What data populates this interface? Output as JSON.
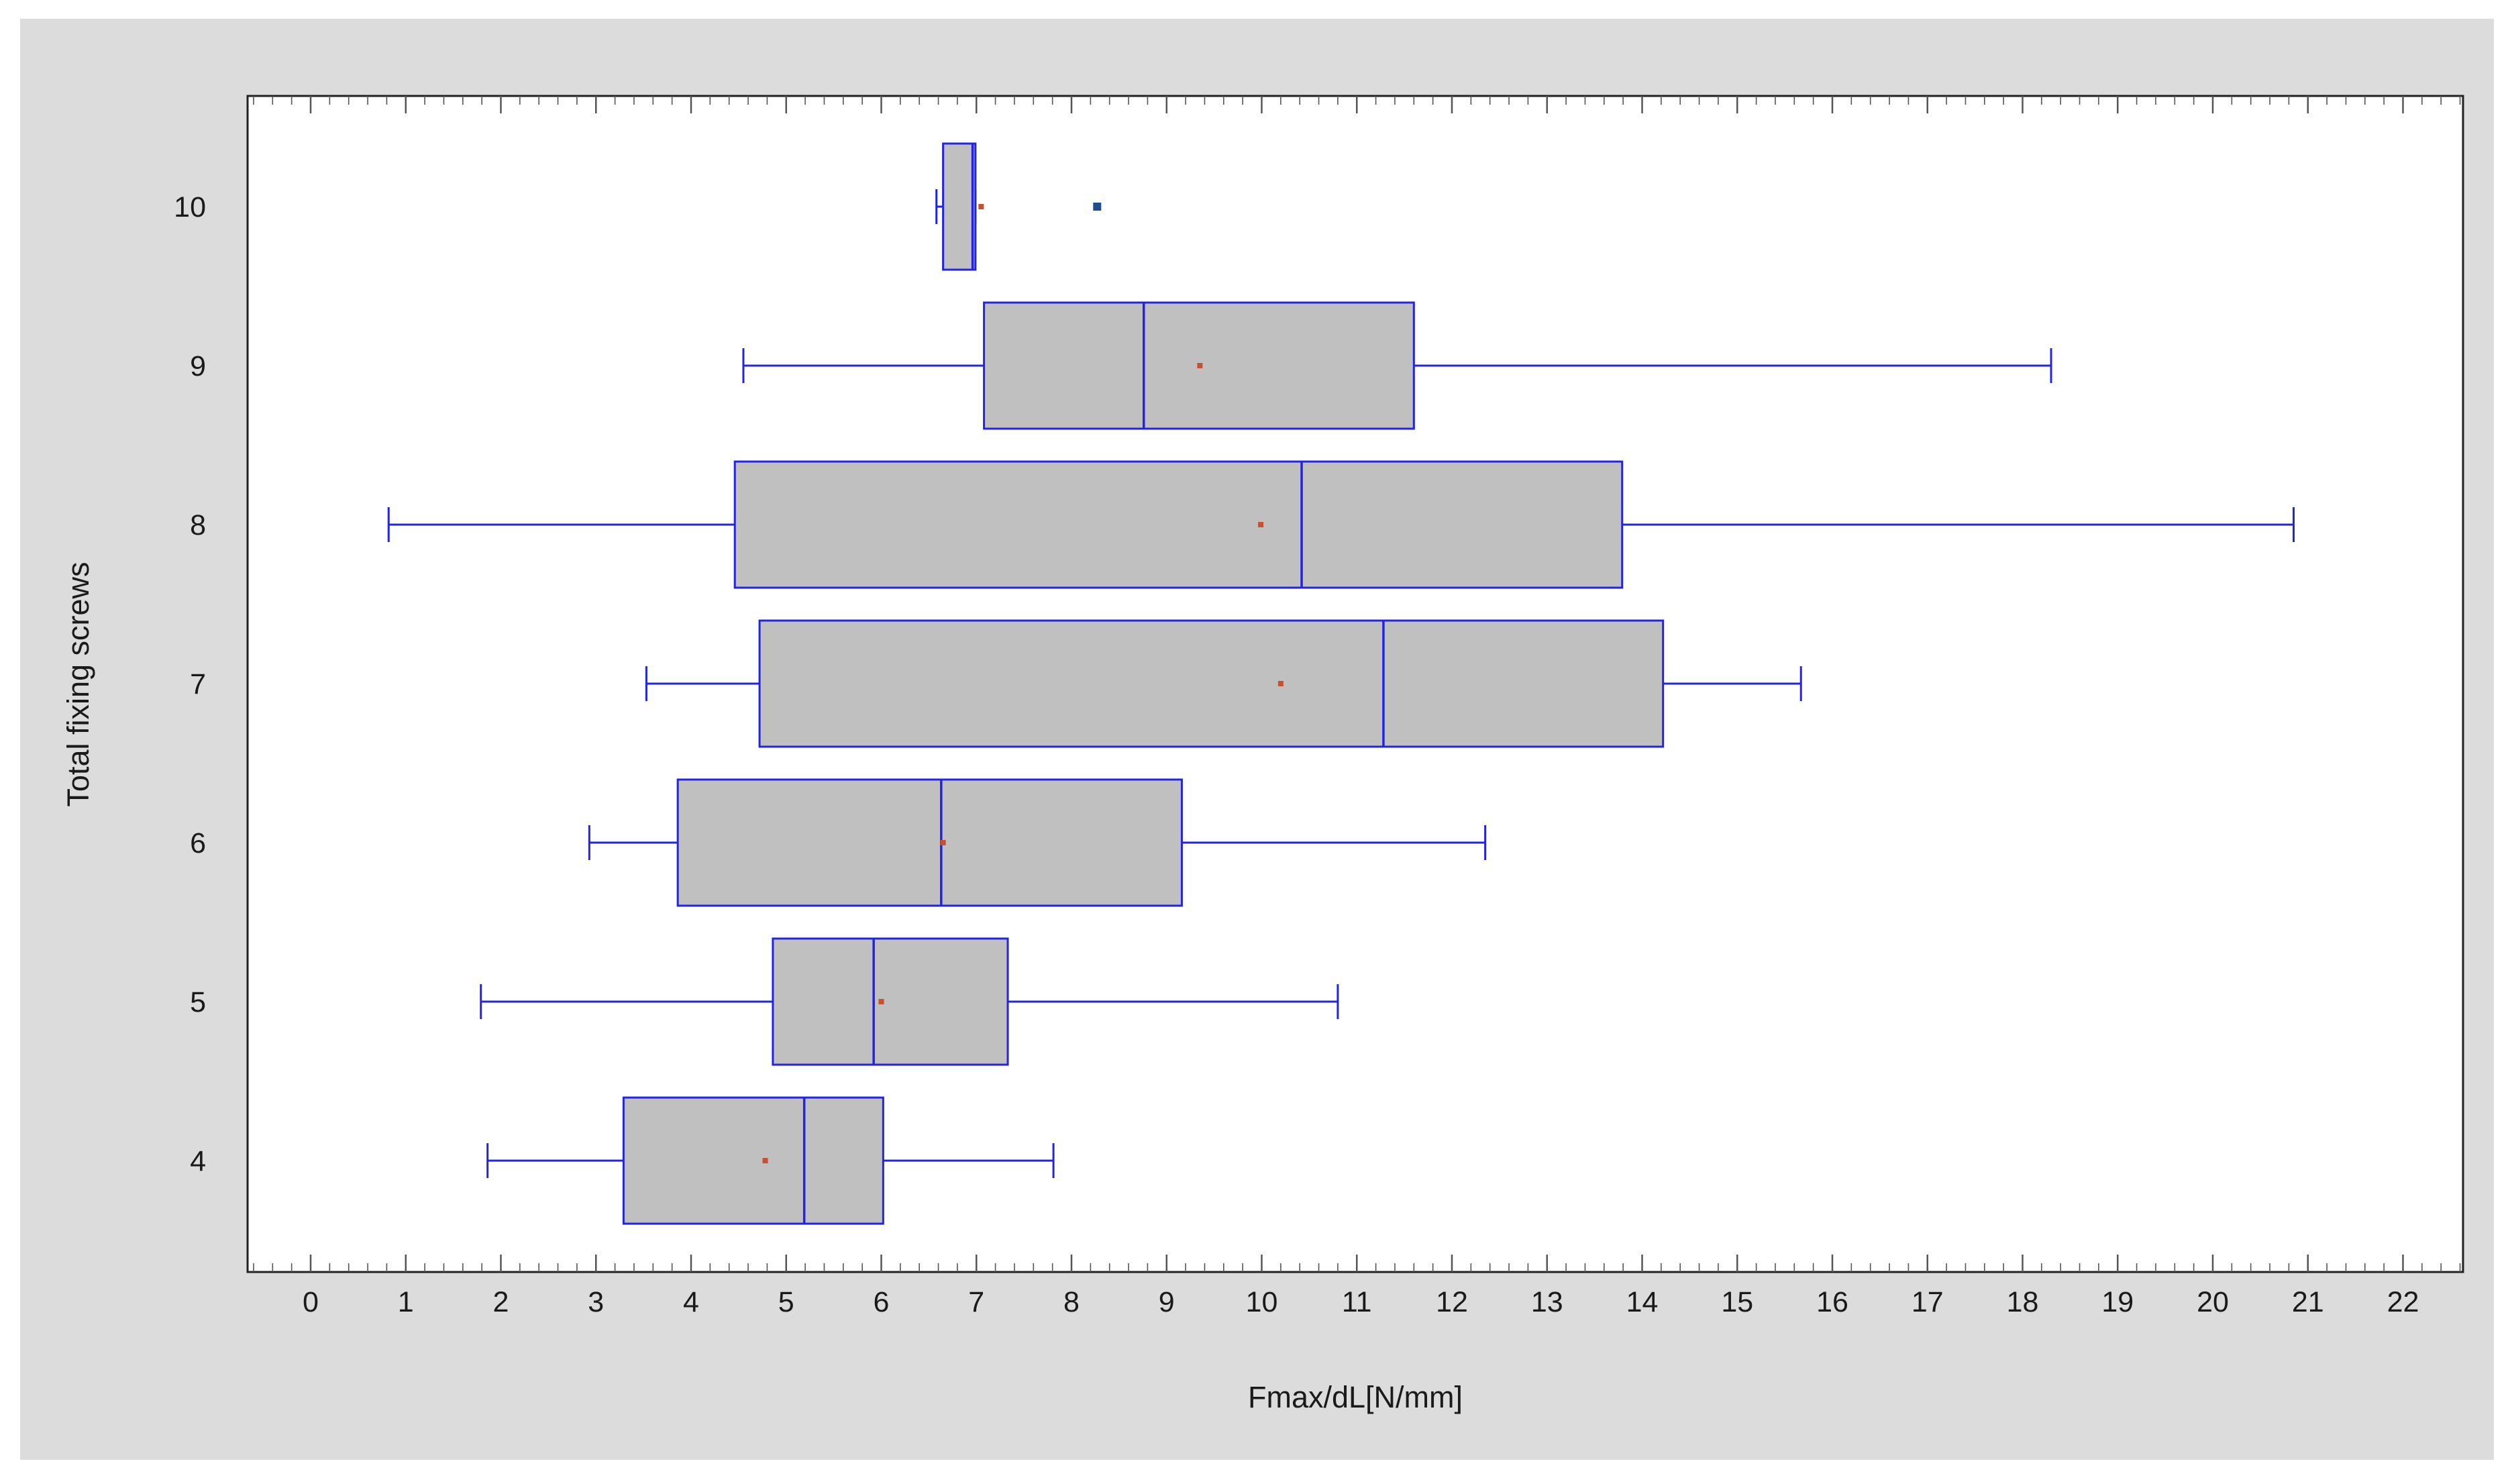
{
  "chart_data": {
    "type": "boxplot",
    "orientation": "horizontal",
    "title": "",
    "xlabel": "Fmax/dL[N/mm]",
    "ylabel": "Total fixing screws",
    "xlim": [
      -0.65,
      22.65
    ],
    "x_ticks": [
      "0",
      "1",
      "2",
      "3",
      "4",
      "5",
      "6",
      "7",
      "8",
      "9",
      "10",
      "11",
      "12",
      "13",
      "14",
      "15",
      "16",
      "17",
      "18",
      "19",
      "20",
      "21",
      "22"
    ],
    "categories": [
      "4",
      "5",
      "6",
      "7",
      "8",
      "9",
      "10"
    ],
    "series": [
      {
        "category": "4",
        "whisker_low": 1.86,
        "q1": 3.29,
        "median": 5.19,
        "q3": 6.02,
        "whisker_high": 7.81,
        "mean": 4.78,
        "outliers": []
      },
      {
        "category": "5",
        "whisker_low": 1.79,
        "q1": 4.86,
        "median": 5.92,
        "q3": 7.33,
        "whisker_high": 10.8,
        "mean": 6.0,
        "outliers": []
      },
      {
        "category": "6",
        "whisker_low": 2.93,
        "q1": 3.86,
        "median": 6.63,
        "q3": 9.16,
        "whisker_high": 12.35,
        "mean": 6.65,
        "outliers": []
      },
      {
        "category": "7",
        "whisker_low": 3.53,
        "q1": 4.72,
        "median": 11.28,
        "q3": 14.22,
        "whisker_high": 15.67,
        "mean": 10.2,
        "outliers": []
      },
      {
        "category": "8",
        "whisker_low": 0.82,
        "q1": 4.46,
        "median": 10.42,
        "q3": 13.79,
        "whisker_high": 20.85,
        "mean": 9.99,
        "outliers": []
      },
      {
        "category": "9",
        "whisker_low": 4.55,
        "q1": 7.08,
        "median": 8.76,
        "q3": 11.6,
        "whisker_high": 18.3,
        "mean": 9.35,
        "outliers": []
      },
      {
        "category": "10",
        "whisker_low": 6.58,
        "q1": 6.65,
        "median": 6.96,
        "q3": 6.99,
        "whisker_high": 6.99,
        "mean": 7.05,
        "outliers": [
          8.27
        ]
      }
    ],
    "grid": false,
    "legend": "none",
    "colors": {
      "box_fill": "#c0c0c0",
      "box_stroke": "#2323e6",
      "mean_marker": "#c8502a",
      "outlier": "#1f4e8f",
      "frame_background": "#dcdcdc",
      "plot_background": "#ffffff"
    }
  }
}
